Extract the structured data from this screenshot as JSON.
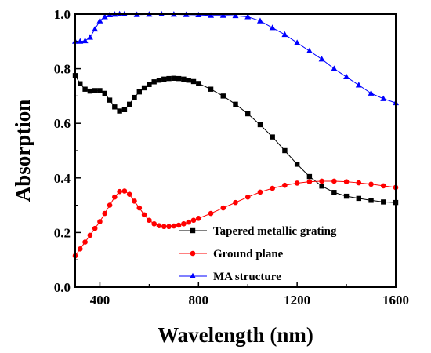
{
  "chart_data": {
    "type": "line",
    "xlabel": "Wavelength (nm)",
    "ylabel": "Absorption",
    "xlim": [
      300,
      1600
    ],
    "ylim": [
      0.0,
      1.0
    ],
    "xticks": [
      400,
      800,
      1200,
      1600
    ],
    "yticks": [
      0.0,
      0.2,
      0.4,
      0.6,
      0.8,
      1.0
    ],
    "xtick_labels": [
      "400",
      "800",
      "1200",
      "1600"
    ],
    "ytick_labels": [
      "0.0",
      "0.2",
      "0.4",
      "0.6",
      "0.8",
      "1.0"
    ],
    "legend_position": "bottom-right",
    "series": [
      {
        "name": "Tapered metallic grating",
        "color": "#000000",
        "marker": "square",
        "x": [
          300,
          320,
          340,
          360,
          380,
          400,
          420,
          440,
          460,
          480,
          500,
          520,
          540,
          560,
          580,
          600,
          620,
          640,
          660,
          680,
          700,
          720,
          740,
          760,
          780,
          800,
          850,
          900,
          950,
          1000,
          1050,
          1100,
          1150,
          1200,
          1250,
          1300,
          1350,
          1400,
          1450,
          1500,
          1550,
          1600
        ],
        "y": [
          0.775,
          0.745,
          0.725,
          0.718,
          0.72,
          0.72,
          0.71,
          0.685,
          0.66,
          0.645,
          0.65,
          0.67,
          0.695,
          0.715,
          0.73,
          0.742,
          0.752,
          0.758,
          0.762,
          0.764,
          0.765,
          0.764,
          0.762,
          0.758,
          0.753,
          0.746,
          0.725,
          0.7,
          0.67,
          0.635,
          0.595,
          0.55,
          0.5,
          0.45,
          0.405,
          0.37,
          0.347,
          0.333,
          0.325,
          0.318,
          0.312,
          0.31
        ]
      },
      {
        "name": "Ground plane",
        "color": "#ff0000",
        "marker": "circle",
        "x": [
          300,
          320,
          340,
          360,
          380,
          400,
          420,
          440,
          460,
          480,
          500,
          520,
          540,
          560,
          580,
          600,
          620,
          640,
          660,
          680,
          700,
          720,
          740,
          760,
          780,
          800,
          850,
          900,
          950,
          1000,
          1050,
          1100,
          1150,
          1200,
          1250,
          1300,
          1350,
          1400,
          1450,
          1500,
          1550,
          1600
        ],
        "y": [
          0.115,
          0.14,
          0.165,
          0.19,
          0.215,
          0.24,
          0.27,
          0.3,
          0.33,
          0.35,
          0.352,
          0.34,
          0.315,
          0.29,
          0.265,
          0.245,
          0.232,
          0.225,
          0.222,
          0.222,
          0.224,
          0.227,
          0.232,
          0.238,
          0.245,
          0.252,
          0.27,
          0.29,
          0.31,
          0.33,
          0.348,
          0.362,
          0.373,
          0.381,
          0.386,
          0.388,
          0.388,
          0.386,
          0.382,
          0.377,
          0.371,
          0.365
        ]
      },
      {
        "name": "MA structure",
        "color": "#0000ff",
        "marker": "triangle",
        "x": [
          300,
          320,
          340,
          360,
          380,
          400,
          420,
          440,
          460,
          480,
          500,
          550,
          600,
          650,
          700,
          750,
          800,
          850,
          900,
          950,
          1000,
          1050,
          1100,
          1150,
          1200,
          1250,
          1300,
          1350,
          1400,
          1450,
          1500,
          1550,
          1600
        ],
        "y": [
          0.9,
          0.9,
          0.902,
          0.915,
          0.945,
          0.975,
          0.99,
          0.997,
          0.999,
          1.0,
          1.0,
          0.998,
          0.999,
          1.0,
          0.999,
          0.998,
          0.997,
          0.995,
          0.995,
          0.994,
          0.99,
          0.975,
          0.95,
          0.925,
          0.895,
          0.865,
          0.835,
          0.8,
          0.77,
          0.74,
          0.71,
          0.69,
          0.675
        ]
      }
    ]
  }
}
